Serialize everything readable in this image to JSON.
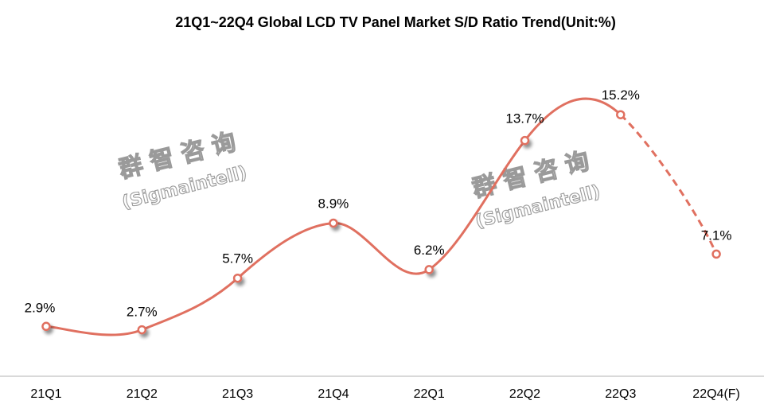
{
  "chart_data": {
    "type": "line",
    "title": "21Q1~22Q4 Global LCD TV Panel Market S/D Ratio Trend(Unit:%)",
    "xlabel": "",
    "ylabel": "",
    "categories": [
      "21Q1",
      "21Q2",
      "21Q3",
      "21Q4",
      "22Q1",
      "22Q2",
      "22Q3",
      "22Q4(F)"
    ],
    "series": [
      {
        "name": "S/D Ratio",
        "values": [
          2.9,
          2.7,
          5.7,
          8.9,
          6.2,
          13.7,
          15.2,
          7.1
        ],
        "labels": [
          "2.9%",
          "2.7%",
          "5.7%",
          "8.9%",
          "6.2%",
          "13.7%",
          "15.2%",
          "7.1%"
        ],
        "color": "#E07060",
        "smooth": true,
        "forecast_from_index": 6
      }
    ],
    "ylim": [
      0,
      20
    ],
    "grid": false,
    "legend": "none",
    "y_axis_visible": false
  },
  "watermarks": [
    {
      "cn": "群智咨询",
      "en": "(Sigmaintell)"
    },
    {
      "cn": "群智咨询",
      "en": "(Sigmaintell)"
    }
  ],
  "colors": {
    "line": "#E07060",
    "axis": "#D9D9D9",
    "watermark_stroke": "#9A9A9A"
  }
}
